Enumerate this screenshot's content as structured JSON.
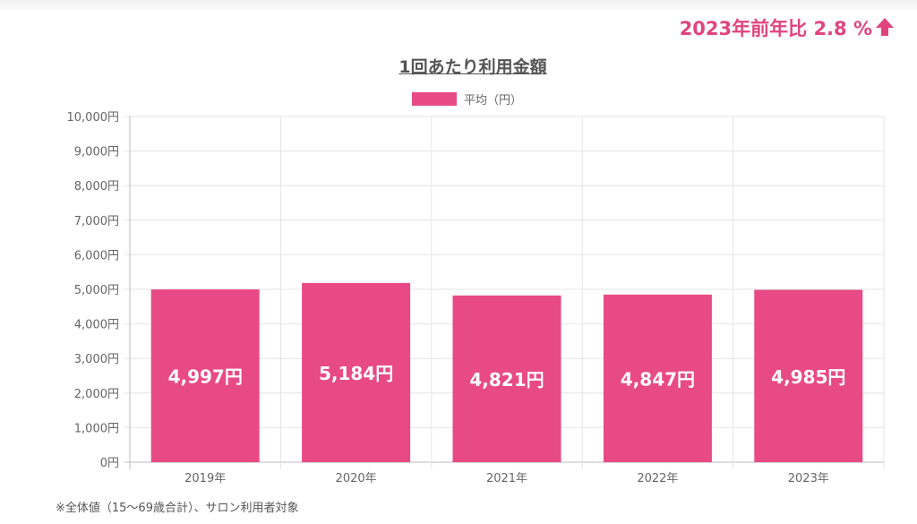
{
  "header": {
    "yoy_text": "2023年前年比 2.8 %",
    "yoy_icon": "arrow-up-icon"
  },
  "colors": {
    "accent": "#e0447f",
    "bar": "#e84a86"
  },
  "chart_data": {
    "type": "bar",
    "title": "1回あたり利用金額",
    "legend": [
      "平均（円）"
    ],
    "legend_position": "top",
    "categories": [
      "2019年",
      "2020年",
      "2021年",
      "2022年",
      "2023年"
    ],
    "values": [
      4997,
      5184,
      4821,
      4847,
      4985
    ],
    "data_labels": [
      "4,997円",
      "5,184円",
      "4,821円",
      "4,847円",
      "4,985円"
    ],
    "yticks": [
      "0円",
      "1,000円",
      "2,000円",
      "3,000円",
      "4,000円",
      "5,000円",
      "6,000円",
      "7,000円",
      "8,000円",
      "9,000円",
      "10,000円"
    ],
    "ylim": [
      0,
      10000
    ],
    "grid": true
  },
  "footnote": "※全体値（15～69歳合計）、サロン利用者対象"
}
